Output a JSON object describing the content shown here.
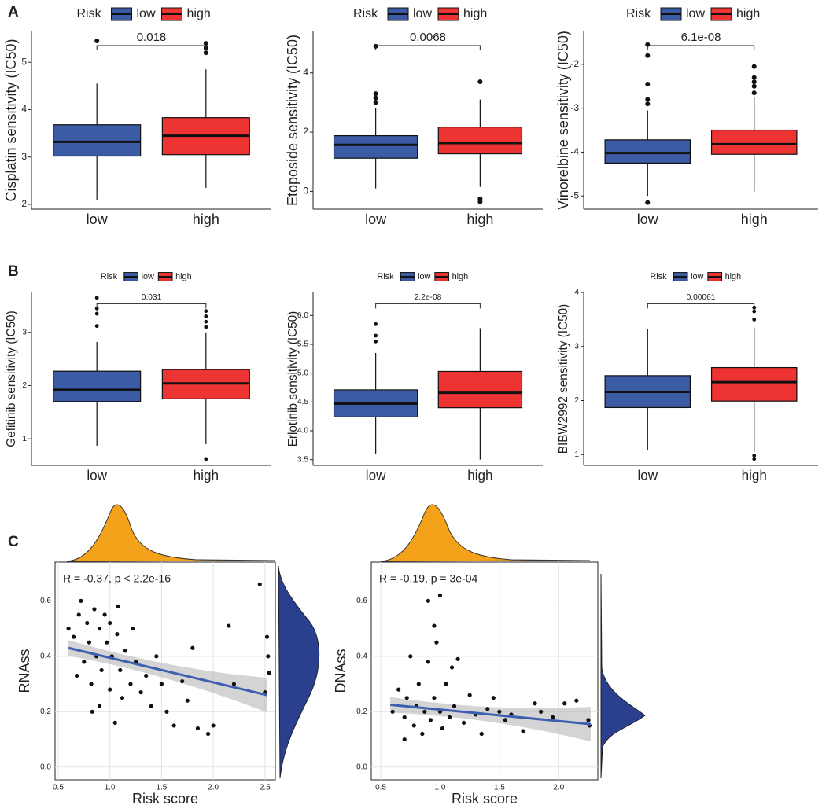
{
  "panel_labels": [
    "A",
    "B",
    "C"
  ],
  "chart_data": [
    {
      "type": "box",
      "ylabel": "Cisplatin sensitivity (IC50)",
      "legend_title": "Risk",
      "categories": [
        "low",
        "high"
      ],
      "colors": [
        "#3b5ba5",
        "#ee3432"
      ],
      "annotation": "0.018",
      "ylim": [
        1.9,
        5.65
      ],
      "yticks": [
        2,
        3,
        4,
        5
      ],
      "groups": [
        {
          "min": 2.1,
          "q1": 3.02,
          "median": 3.32,
          "q3": 3.68,
          "max": 4.55,
          "outliers": [
            5.45
          ]
        },
        {
          "min": 2.35,
          "q1": 3.05,
          "median": 3.45,
          "q3": 3.83,
          "max": 4.85,
          "outliers": [
            5.2,
            5.3,
            5.4
          ]
        }
      ]
    },
    {
      "type": "box",
      "ylabel": "Etoposide sensitivity (IC50)",
      "legend_title": "Risk",
      "categories": [
        "low",
        "high"
      ],
      "colors": [
        "#3b5ba5",
        "#ee3432"
      ],
      "annotation": "0.0068",
      "ylim": [
        -0.6,
        5.4
      ],
      "yticks": [
        0,
        2,
        4
      ],
      "groups": [
        {
          "min": 0.1,
          "q1": 1.12,
          "median": 1.57,
          "q3": 1.88,
          "max": 2.8,
          "outliers": [
            3.0,
            3.15,
            3.3,
            4.9
          ]
        },
        {
          "min": 0.15,
          "q1": 1.27,
          "median": 1.63,
          "q3": 2.17,
          "max": 3.1,
          "outliers": [
            -0.25,
            -0.35,
            3.7
          ]
        }
      ]
    },
    {
      "type": "box",
      "ylabel": "Vinorelbine sensitivity (IC50)",
      "legend_title": "Risk",
      "categories": [
        "low",
        "high"
      ],
      "colors": [
        "#3b5ba5",
        "#ee3432"
      ],
      "annotation": "6.1e-08",
      "ylim": [
        -5.3,
        -1.25
      ],
      "yticks": [
        -5,
        -4,
        -3,
        -2
      ],
      "groups": [
        {
          "min": -5.0,
          "q1": -4.25,
          "median": -4.02,
          "q3": -3.72,
          "max": -3.05,
          "outliers": [
            -5.15,
            -2.9,
            -2.8,
            -2.45,
            -1.8,
            -1.55
          ]
        },
        {
          "min": -4.9,
          "q1": -4.05,
          "median": -3.82,
          "q3": -3.5,
          "max": -2.75,
          "outliers": [
            -2.65,
            -2.5,
            -2.4,
            -2.3,
            -2.05
          ]
        }
      ]
    },
    {
      "type": "box",
      "ylabel": "Gefitinib sensitivity (IC50)",
      "legend_title": "Risk",
      "categories": [
        "low",
        "high"
      ],
      "colors": [
        "#3b5ba5",
        "#ee3432"
      ],
      "annotation": "0.031",
      "ylim": [
        0.5,
        3.75
      ],
      "yticks": [
        1,
        2,
        3
      ],
      "groups": [
        {
          "min": 0.87,
          "q1": 1.7,
          "median": 1.92,
          "q3": 2.27,
          "max": 2.82,
          "outliers": [
            3.12,
            3.35,
            3.45,
            3.65
          ]
        },
        {
          "min": 0.9,
          "q1": 1.75,
          "median": 2.04,
          "q3": 2.3,
          "max": 3.0,
          "outliers": [
            0.62,
            3.1,
            3.2,
            3.3,
            3.4
          ]
        }
      ]
    },
    {
      "type": "box",
      "ylabel": "Erlotinib sensitivity (IC50)",
      "legend_title": "Risk",
      "categories": [
        "low",
        "high"
      ],
      "colors": [
        "#3b5ba5",
        "#ee3432"
      ],
      "annotation": "2.2e-08",
      "ylim": [
        3.4,
        6.4
      ],
      "yticks": [
        3.5,
        {
          "value": 4,
          "label": "4.0"
        },
        4.5,
        {
          "value": 5,
          "label": "5.0"
        },
        5.5,
        {
          "value": 6,
          "label": "6.0"
        }
      ],
      "groups": [
        {
          "min": 3.6,
          "q1": 4.24,
          "median": 4.47,
          "q3": 4.71,
          "max": 5.35,
          "outliers": [
            5.55,
            5.65,
            5.85
          ]
        },
        {
          "min": 3.5,
          "q1": 4.4,
          "median": 4.66,
          "q3": 5.03,
          "max": 5.78,
          "outliers": []
        }
      ]
    },
    {
      "type": "box",
      "ylabel": "BIBW2992 sensitivity (IC50)",
      "legend_title": "Risk",
      "categories": [
        "low",
        "high"
      ],
      "colors": [
        "#3b5ba5",
        "#ee3432"
      ],
      "annotation": "0.00061",
      "ylim": [
        0.8,
        4.0
      ],
      "yticks": [
        1,
        2,
        3,
        4
      ],
      "groups": [
        {
          "min": 1.08,
          "q1": 1.87,
          "median": 2.16,
          "q3": 2.46,
          "max": 3.32,
          "outliers": []
        },
        {
          "min": 1.05,
          "q1": 1.99,
          "median": 2.34,
          "q3": 2.61,
          "max": 3.35,
          "outliers": [
            0.92,
            0.98,
            3.5,
            3.65,
            3.72
          ]
        }
      ]
    },
    {
      "type": "scatter",
      "xlabel": "Risk score",
      "ylabel": "RNAss",
      "annotation": "R = -0.37,  p < 2.2e-16",
      "color": "#111111",
      "fit_color": "#3d5fb0",
      "xlim": [
        0.47,
        2.6
      ],
      "ylim": [
        -0.046,
        0.74
      ],
      "xticks": [
        0.5,
        {
          "value": 1,
          "label": "1.0"
        },
        1.5,
        {
          "value": 2,
          "label": "2.0"
        },
        2.5
      ],
      "yticks": [
        {
          "value": 0,
          "label": "0.0"
        },
        0.2,
        0.4,
        0.6
      ],
      "grid": true,
      "x": [
        0.6,
        0.65,
        0.7,
        0.72,
        0.75,
        0.78,
        0.8,
        0.82,
        0.85,
        0.87,
        0.9,
        0.9,
        0.92,
        0.95,
        0.97,
        1.0,
        1.0,
        1.02,
        1.05,
        1.07,
        1.1,
        1.12,
        1.15,
        1.2,
        1.22,
        1.25,
        1.3,
        1.35,
        1.4,
        1.45,
        1.5,
        1.55,
        1.62,
        1.7,
        1.75,
        1.8,
        1.85,
        1.95,
        2.0,
        2.15,
        2.2,
        2.45,
        2.5,
        2.52,
        2.53,
        2.54,
        0.68,
        0.83,
        1.08
      ],
      "y": [
        0.5,
        0.47,
        0.55,
        0.6,
        0.38,
        0.52,
        0.45,
        0.3,
        0.57,
        0.4,
        0.5,
        0.22,
        0.35,
        0.55,
        0.45,
        0.28,
        0.52,
        0.4,
        0.16,
        0.48,
        0.35,
        0.25,
        0.42,
        0.3,
        0.5,
        0.38,
        0.27,
        0.33,
        0.22,
        0.4,
        0.3,
        0.2,
        0.15,
        0.31,
        0.24,
        0.43,
        0.14,
        0.12,
        0.15,
        0.51,
        0.3,
        0.66,
        0.27,
        0.47,
        0.4,
        0.34,
        0.33,
        0.2,
        0.58
      ],
      "fit": {
        "x": [
          0.6,
          2.52
        ],
        "y": [
          0.43,
          0.26
        ]
      }
    },
    {
      "type": "scatter",
      "xlabel": "Risk score",
      "ylabel": "DNAss",
      "annotation": "R = -0.19,  p = 3e-04",
      "color": "#111111",
      "fit_color": "#3d5fb0",
      "xlim": [
        0.42,
        2.33
      ],
      "ylim": [
        -0.046,
        0.74
      ],
      "xticks": [
        0.5,
        {
          "value": 1,
          "label": "1.0"
        },
        1.5,
        {
          "value": 2,
          "label": "2.0"
        }
      ],
      "yticks": [
        {
          "value": 0,
          "label": "0.0"
        },
        0.2,
        0.4,
        0.6
      ],
      "grid": true,
      "x": [
        0.6,
        0.65,
        0.7,
        0.72,
        0.75,
        0.78,
        0.8,
        0.82,
        0.85,
        0.87,
        0.9,
        0.9,
        0.92,
        0.95,
        0.95,
        0.97,
        1.0,
        1.0,
        1.02,
        1.05,
        1.08,
        1.1,
        1.12,
        1.15,
        1.2,
        1.25,
        1.3,
        1.35,
        1.4,
        1.45,
        1.5,
        1.55,
        1.6,
        1.7,
        1.8,
        1.85,
        1.95,
        2.05,
        2.15,
        2.25,
        2.26,
        0.7
      ],
      "y": [
        0.2,
        0.28,
        0.18,
        0.25,
        0.4,
        0.15,
        0.22,
        0.3,
        0.12,
        0.2,
        0.38,
        0.6,
        0.17,
        0.51,
        0.25,
        0.45,
        0.62,
        0.2,
        0.14,
        0.3,
        0.18,
        0.36,
        0.22,
        0.39,
        0.16,
        0.26,
        0.19,
        0.12,
        0.21,
        0.25,
        0.2,
        0.17,
        0.19,
        0.13,
        0.23,
        0.2,
        0.18,
        0.23,
        0.24,
        0.17,
        0.15,
        0.1
      ],
      "fit": {
        "x": [
          0.58,
          2.27
        ],
        "y": [
          0.225,
          0.155
        ]
      }
    }
  ]
}
